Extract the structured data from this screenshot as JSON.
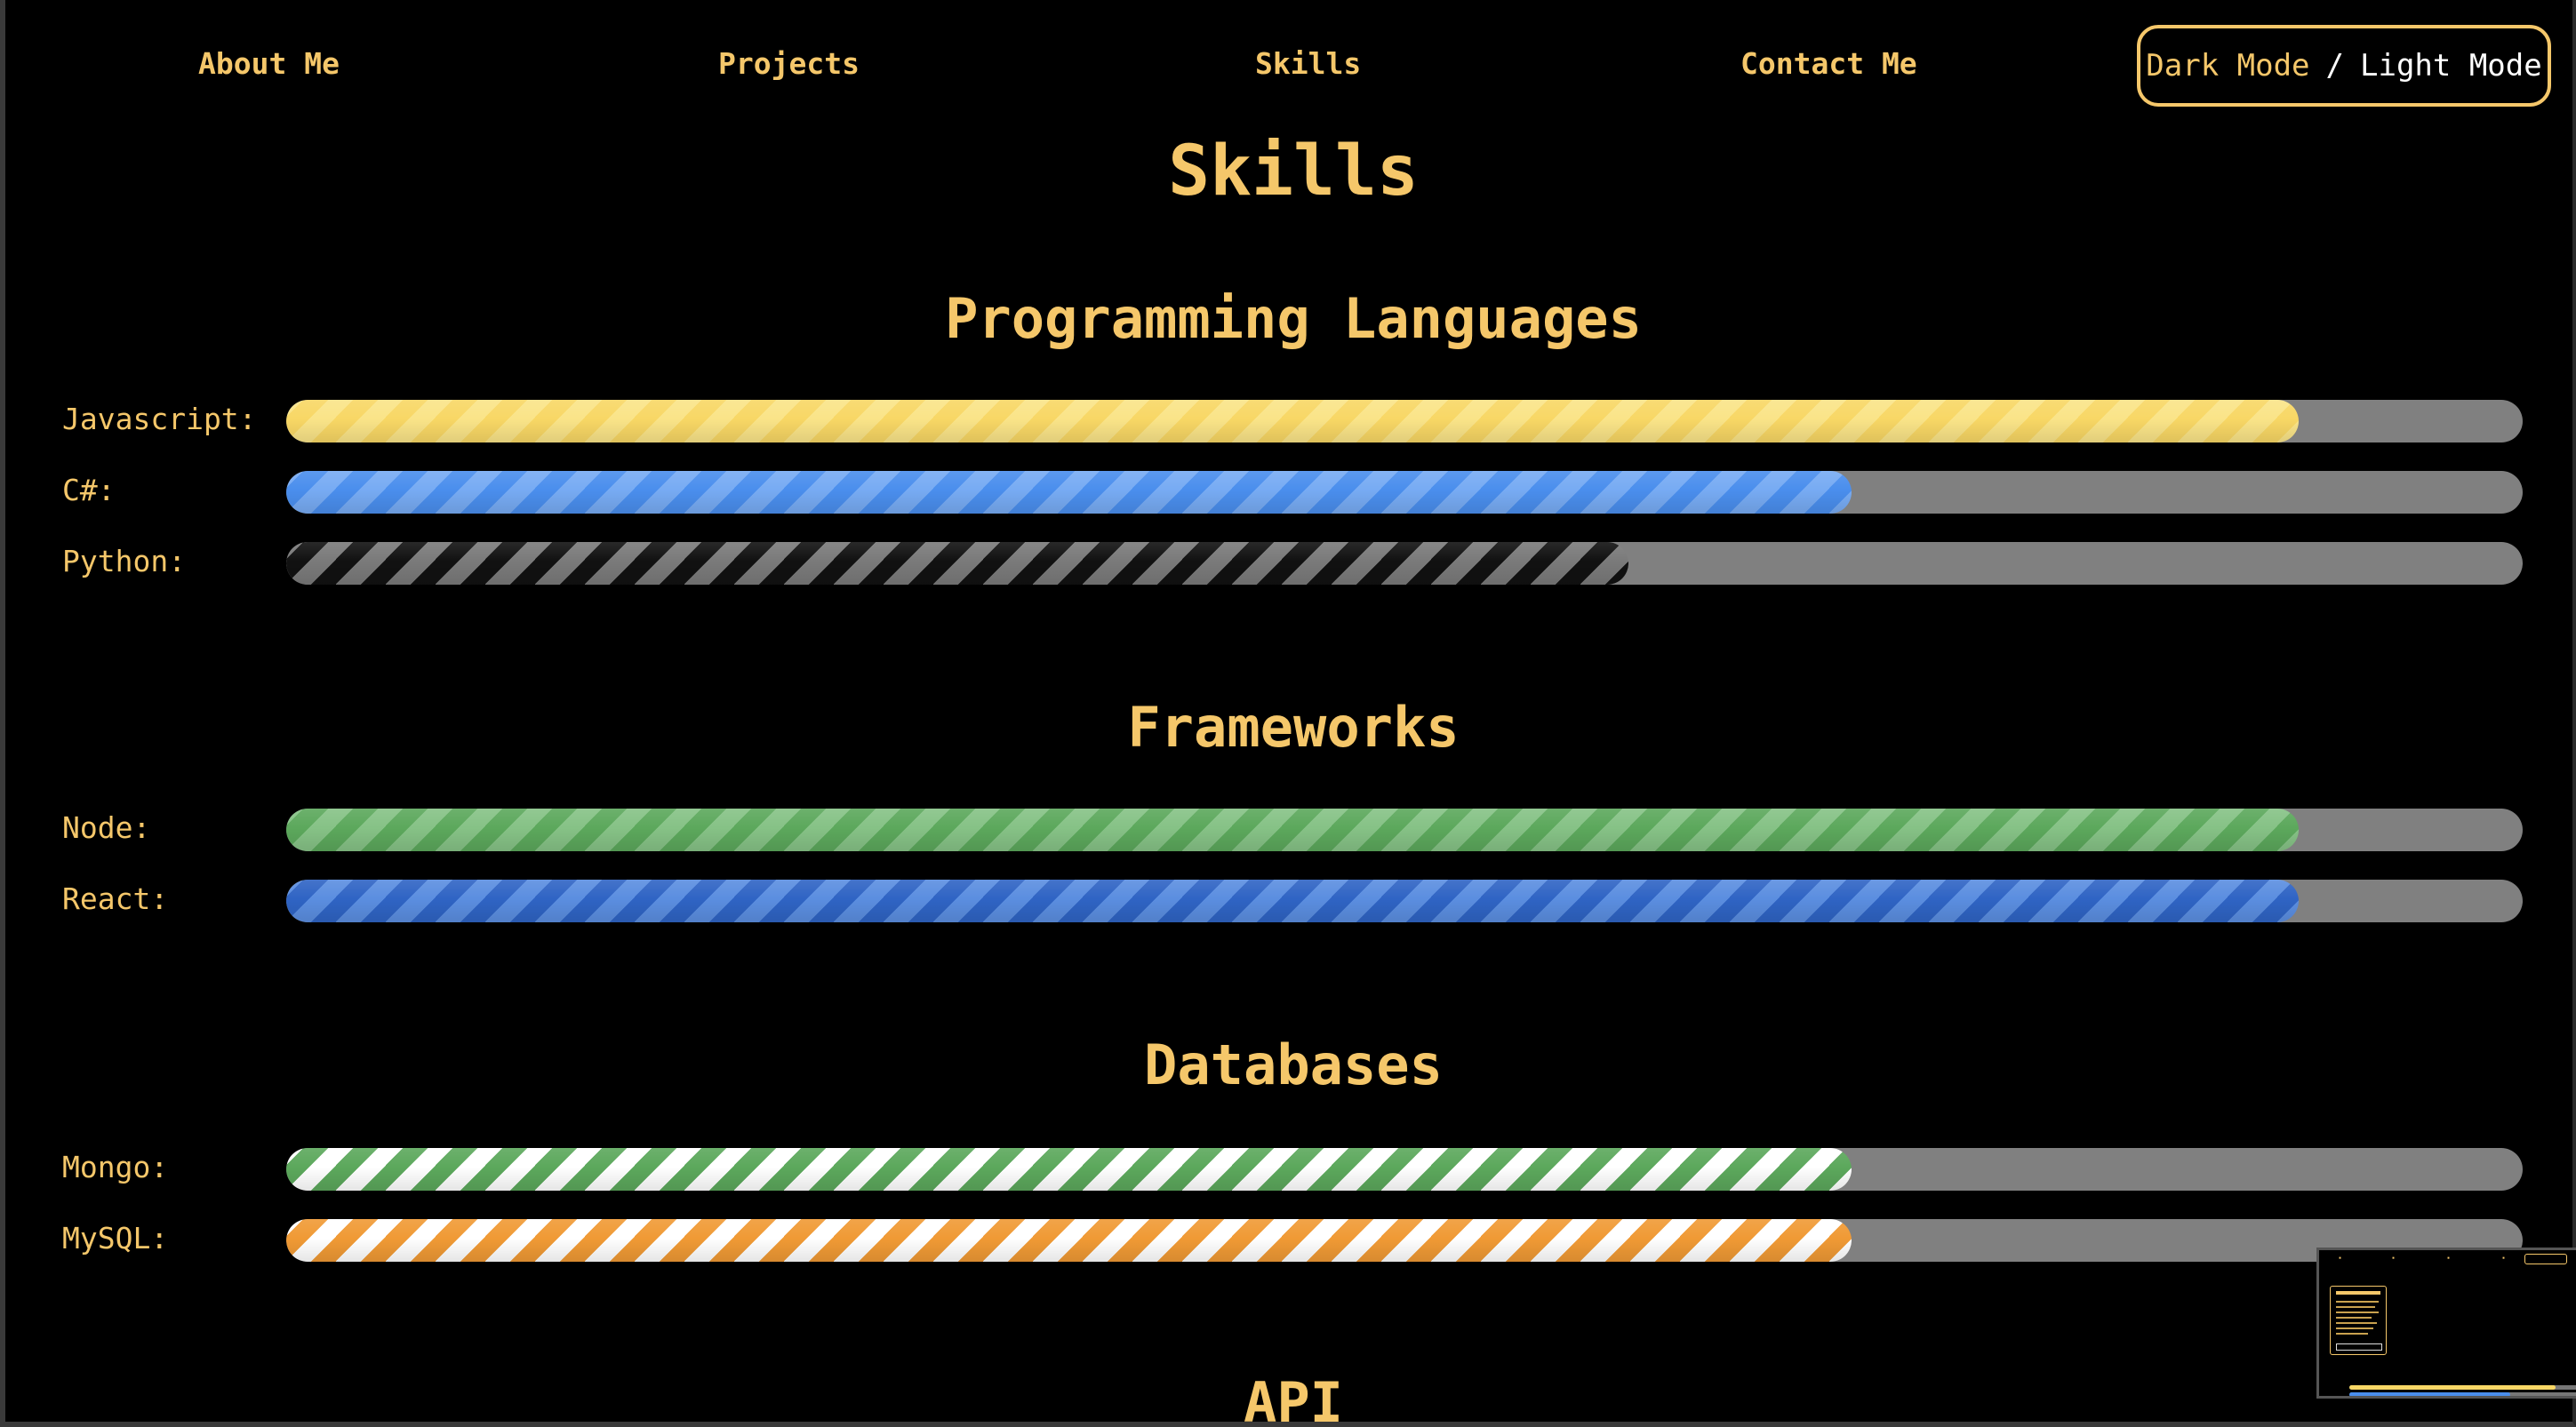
{
  "nav": {
    "links": [
      "About Me",
      "Projects",
      "Skills",
      "Contact Me"
    ],
    "toggle": {
      "dark": "Dark Mode",
      "separator": "/",
      "light": "Light Mode"
    }
  },
  "page_title": "Skills",
  "sections": [
    {
      "title": "Programming Languages",
      "skills": [
        {
          "label": "Javascript:",
          "level": 0.9,
          "color": "#f8d765",
          "stripe": "#fae488"
        },
        {
          "label": "C#:",
          "level": 0.7,
          "color": "#4a8eed",
          "stripe": "#77abf3"
        },
        {
          "label": "Python:",
          "level": 0.6,
          "color": "#111111",
          "stripe": "#7a7a7a"
        }
      ]
    },
    {
      "title": "Frameworks",
      "skills": [
        {
          "label": "Node:",
          "level": 0.9,
          "color": "#5ca85c",
          "stripe": "#86c286"
        },
        {
          "label": "React:",
          "level": 0.9,
          "color": "#2f64c4",
          "stripe": "#5b8ee0"
        }
      ]
    },
    {
      "title": "Databases",
      "skills": [
        {
          "label": "Mongo:",
          "level": 0.7,
          "color": "#5ca85c",
          "stripe": "#ffffff"
        },
        {
          "label": "MySQL:",
          "level": 0.7,
          "color": "#f09a35",
          "stripe": "#ffffff"
        }
      ]
    },
    {
      "title": "API",
      "skills": []
    }
  ],
  "colors": {
    "accent": "#f5c76a",
    "background": "#000000",
    "track": "#808080"
  },
  "preview_thumbnail": {
    "nav_links": [
      "About Me",
      "Projects",
      "Skills",
      "Contact Me"
    ],
    "titles": [
      "Projects",
      "Skills",
      "Programming Languages"
    ],
    "card_title": "Cat's Coffee Shop"
  }
}
